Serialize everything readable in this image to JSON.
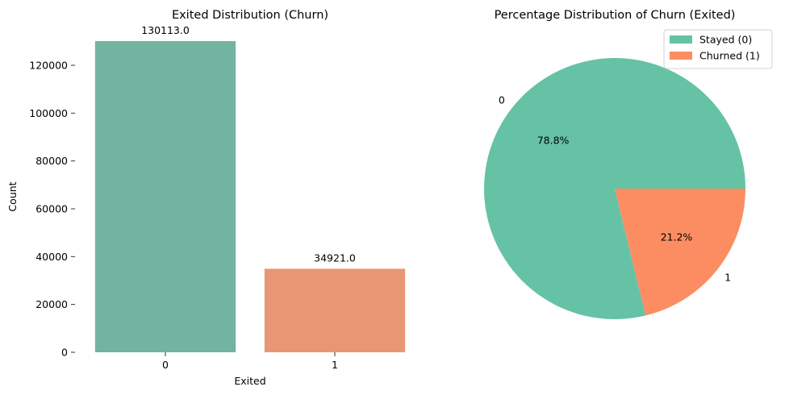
{
  "chart_data": [
    {
      "type": "bar",
      "title": "Exited Distribution (Churn)",
      "xlabel": "Exited",
      "ylabel": "Count",
      "categories": [
        "0",
        "1"
      ],
      "values": [
        130113,
        34921
      ],
      "value_labels": [
        "130113.0",
        "34921.0"
      ],
      "colors": [
        "#73b4a0",
        "#e89774"
      ],
      "ylim": [
        0,
        130113
      ],
      "yticks": [
        {
          "value": 0,
          "label": "0"
        },
        {
          "value": 20000,
          "label": "20000"
        },
        {
          "value": 40000,
          "label": "40000"
        },
        {
          "value": 60000,
          "label": "60000"
        },
        {
          "value": 80000,
          "label": "80000"
        },
        {
          "value": 100000,
          "label": "100000"
        },
        {
          "value": 120000,
          "label": "120000"
        }
      ],
      "grid": false
    },
    {
      "type": "pie",
      "title": "Percentage Distribution of Churn (Exited)",
      "labels": [
        "0",
        "1"
      ],
      "values": [
        78.8,
        21.2
      ],
      "pct_labels": [
        "78.8%",
        "21.2%"
      ],
      "colors": [
        "#66c2a5",
        "#fc8d62"
      ],
      "legend": {
        "placement": "top-right",
        "entries": [
          "Stayed (0)",
          "Churned (1)"
        ]
      }
    }
  ]
}
